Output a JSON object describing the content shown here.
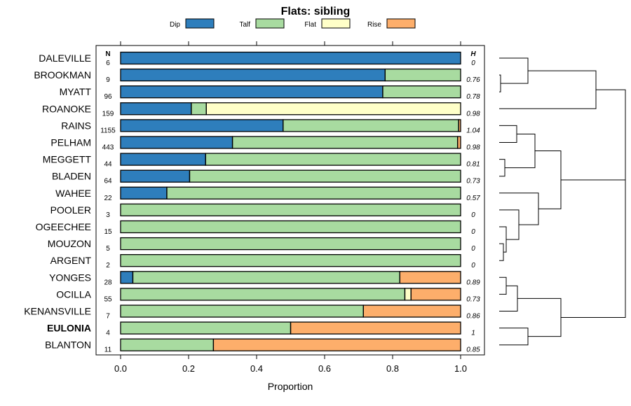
{
  "chart_data": {
    "type": "bar",
    "stacked": true,
    "orientation": "horizontal",
    "title": "Flats: sibling",
    "xlabel": "Proportion",
    "xlim": [
      0,
      1
    ],
    "xticks": [
      "0.0",
      "0.2",
      "0.4",
      "0.6",
      "0.8",
      "1.0"
    ],
    "n_header": "N",
    "h_header": "H",
    "legend": [
      {
        "name": "Dip",
        "color": "#2e7ebc"
      },
      {
        "name": "Talf",
        "color": "#a8dba0"
      },
      {
        "name": "Flat",
        "color": "#ffffc8"
      },
      {
        "name": "Rise",
        "color": "#fdae6b"
      }
    ],
    "rows": [
      {
        "name": "DALEVILLE",
        "bold": false,
        "n": "6",
        "h": "0",
        "values": [
          1.0,
          0.0,
          0.0,
          0.0
        ]
      },
      {
        "name": "BROOKMAN",
        "bold": false,
        "n": "9",
        "h": "0.76",
        "values": [
          0.778,
          0.222,
          0.0,
          0.0
        ]
      },
      {
        "name": "MYATT",
        "bold": false,
        "n": "96",
        "h": "0.78",
        "values": [
          0.771,
          0.229,
          0.0,
          0.0
        ]
      },
      {
        "name": "ROANOKE",
        "bold": false,
        "n": "159",
        "h": "0.98",
        "values": [
          0.208,
          0.044,
          0.748,
          0.0
        ]
      },
      {
        "name": "RAINS",
        "bold": false,
        "n": "1155",
        "h": "1.04",
        "values": [
          0.478,
          0.516,
          0.0,
          0.006
        ]
      },
      {
        "name": "PELHAM",
        "bold": false,
        "n": "443",
        "h": "0.98",
        "values": [
          0.329,
          0.662,
          0.0,
          0.009
        ]
      },
      {
        "name": "MEGGETT",
        "bold": false,
        "n": "44",
        "h": "0.81",
        "values": [
          0.25,
          0.75,
          0.0,
          0.0
        ]
      },
      {
        "name": "BLADEN",
        "bold": false,
        "n": "64",
        "h": "0.73",
        "values": [
          0.203,
          0.797,
          0.0,
          0.0
        ]
      },
      {
        "name": "WAHEE",
        "bold": false,
        "n": "22",
        "h": "0.57",
        "values": [
          0.136,
          0.864,
          0.0,
          0.0
        ]
      },
      {
        "name": "POOLER",
        "bold": false,
        "n": "3",
        "h": "0",
        "values": [
          0.0,
          1.0,
          0.0,
          0.0
        ]
      },
      {
        "name": "OGEECHEE",
        "bold": false,
        "n": "15",
        "h": "0",
        "values": [
          0.0,
          1.0,
          0.0,
          0.0
        ]
      },
      {
        "name": "MOUZON",
        "bold": false,
        "n": "5",
        "h": "0",
        "values": [
          0.0,
          1.0,
          0.0,
          0.0
        ]
      },
      {
        "name": "ARGENT",
        "bold": false,
        "n": "2",
        "h": "0",
        "values": [
          0.0,
          1.0,
          0.0,
          0.0
        ]
      },
      {
        "name": "YONGES",
        "bold": false,
        "n": "28",
        "h": "0.89",
        "values": [
          0.036,
          0.785,
          0.0,
          0.179
        ]
      },
      {
        "name": "OCILLA",
        "bold": false,
        "n": "55",
        "h": "0.73",
        "values": [
          0.0,
          0.836,
          0.018,
          0.146
        ]
      },
      {
        "name": "KENANSVILLE",
        "bold": false,
        "n": "7",
        "h": "0.86",
        "values": [
          0.0,
          0.714,
          0.0,
          0.286
        ]
      },
      {
        "name": "EULONIA",
        "bold": true,
        "n": "4",
        "h": "1",
        "values": [
          0.0,
          0.5,
          0.0,
          0.5
        ]
      },
      {
        "name": "BLANTON",
        "bold": false,
        "n": "11",
        "h": "0.85",
        "values": [
          0.0,
          0.273,
          0.0,
          0.727
        ]
      }
    ]
  }
}
